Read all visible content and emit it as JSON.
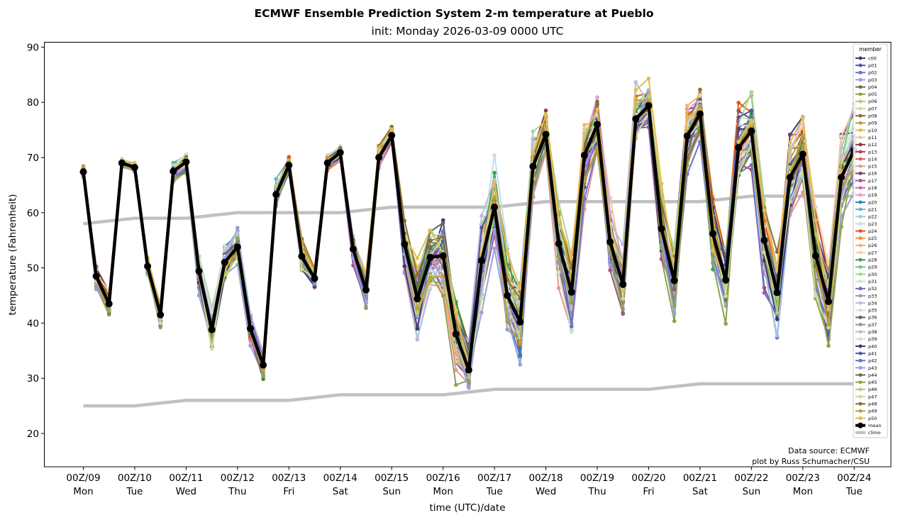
{
  "chart_data": {
    "type": "line",
    "title": "ECMWF Ensemble Prediction System 2-m temperature at Pueblo",
    "subtitle": "init: Monday 2026-03-09 0000 UTC",
    "xlabel": "time (UTC)/date",
    "ylabel": "temperature (Fahrenheit)",
    "ylim": [
      14,
      91
    ],
    "yticks": [
      20,
      30,
      40,
      50,
      60,
      70,
      80,
      90
    ],
    "xlim_days": [
      -0.75,
      15.9
    ],
    "xticks": [
      {
        "day": 0,
        "top": "00Z/09",
        "bottom": "Mon"
      },
      {
        "day": 1,
        "top": "00Z/10",
        "bottom": "Tue"
      },
      {
        "day": 2,
        "top": "00Z/11",
        "bottom": "Wed"
      },
      {
        "day": 3,
        "top": "00Z/12",
        "bottom": "Thu"
      },
      {
        "day": 4,
        "top": "00Z/13",
        "bottom": "Fri"
      },
      {
        "day": 5,
        "top": "00Z/14",
        "bottom": "Sat"
      },
      {
        "day": 6,
        "top": "00Z/15",
        "bottom": "Sun"
      },
      {
        "day": 7,
        "top": "00Z/16",
        "bottom": "Mon"
      },
      {
        "day": 8,
        "top": "00Z/17",
        "bottom": "Tue"
      },
      {
        "day": 9,
        "top": "00Z/18",
        "bottom": "Wed"
      },
      {
        "day": 10,
        "top": "00Z/19",
        "bottom": "Thu"
      },
      {
        "day": 11,
        "top": "00Z/20",
        "bottom": "Fri"
      },
      {
        "day": 12,
        "top": "00Z/21",
        "bottom": "Sat"
      },
      {
        "day": 13,
        "top": "00Z/22",
        "bottom": "Sun"
      },
      {
        "day": 14,
        "top": "00Z/23",
        "bottom": "Mon"
      },
      {
        "day": 15,
        "top": "00Z/24",
        "bottom": "Tue"
      }
    ],
    "time_step_hours": 6,
    "mean": {
      "name": "mean",
      "color": "#000000",
      "values": [
        67.4,
        48.5,
        43.5,
        69.0,
        68.2,
        50.3,
        41.5,
        67.5,
        69.2,
        49.4,
        38.8,
        51.0,
        53.8,
        39.0,
        32.4,
        63.3,
        68.6,
        52.1,
        48.1,
        69.0,
        70.9,
        53.4,
        46.0,
        70.0,
        74.0,
        54.3,
        44.4,
        51.9,
        52.2,
        38.0,
        31.5,
        51.3,
        61.0,
        45.0,
        40.2,
        68.4,
        74.2,
        54.4,
        45.6,
        70.4,
        76.0,
        54.7,
        47.0,
        77.0,
        79.4,
        57.1,
        47.7,
        73.9,
        77.9,
        56.2,
        47.8,
        71.8,
        74.8,
        55.0,
        45.5,
        66.4,
        70.6,
        52.2,
        43.9,
        66.4,
        71.3
      ]
    },
    "spread": [
      1.5,
      3,
      3,
      1,
      1,
      2,
      3,
      2,
      2,
      4,
      5,
      5,
      5,
      4,
      3,
      3,
      2,
      4,
      3,
      2,
      2,
      3,
      4,
      3,
      2,
      6,
      9,
      9,
      10,
      9,
      8,
      11,
      9,
      10,
      10,
      8,
      6,
      10,
      10,
      9,
      7,
      9,
      9,
      7,
      6,
      9,
      8,
      8,
      7,
      9,
      9,
      9,
      8,
      10,
      10,
      11,
      9,
      11,
      11,
      11,
      10
    ],
    "climo": {
      "name": "climo",
      "color": "#c0c0c0",
      "high": [
        58,
        59,
        59,
        60,
        60,
        60,
        61,
        61,
        61,
        62,
        62,
        62,
        62,
        63,
        63,
        63
      ],
      "low": [
        25,
        25,
        26,
        26,
        26,
        27,
        27,
        27,
        28,
        28,
        28,
        28,
        29,
        29,
        29,
        29
      ]
    },
    "members": [
      {
        "name": "c00",
        "color": "#393b79"
      },
      {
        "name": "p01",
        "color": "#5254a3"
      },
      {
        "name": "p02",
        "color": "#6b6ecf"
      },
      {
        "name": "p03",
        "color": "#9c9ede"
      },
      {
        "name": "p04",
        "color": "#637939"
      },
      {
        "name": "p05",
        "color": "#8ca252"
      },
      {
        "name": "p06",
        "color": "#b5cf6b"
      },
      {
        "name": "p07",
        "color": "#cedb9c"
      },
      {
        "name": "p08",
        "color": "#8c6d31"
      },
      {
        "name": "p09",
        "color": "#bd9e39"
      },
      {
        "name": "p10",
        "color": "#e7ba52"
      },
      {
        "name": "p11",
        "color": "#e7cb94"
      },
      {
        "name": "p12",
        "color": "#843c39"
      },
      {
        "name": "p13",
        "color": "#ad494a"
      },
      {
        "name": "p14",
        "color": "#d6616b"
      },
      {
        "name": "p15",
        "color": "#e7969c"
      },
      {
        "name": "p16",
        "color": "#7b4173"
      },
      {
        "name": "p17",
        "color": "#a55194"
      },
      {
        "name": "p18",
        "color": "#ce6dbd"
      },
      {
        "name": "p19",
        "color": "#de9ed6"
      },
      {
        "name": "p20",
        "color": "#3182bd"
      },
      {
        "name": "p21",
        "color": "#6baed6"
      },
      {
        "name": "p22",
        "color": "#9ecae1"
      },
      {
        "name": "p23",
        "color": "#c6dbef"
      },
      {
        "name": "p24",
        "color": "#e6550d"
      },
      {
        "name": "p25",
        "color": "#fd8d3c"
      },
      {
        "name": "p26",
        "color": "#fdae6b"
      },
      {
        "name": "p27",
        "color": "#fdd0a2"
      },
      {
        "name": "p28",
        "color": "#31a354"
      },
      {
        "name": "p29",
        "color": "#74c476"
      },
      {
        "name": "p30",
        "color": "#a1d99b"
      },
      {
        "name": "p31",
        "color": "#c7e9c0"
      },
      {
        "name": "p32",
        "color": "#756bb1"
      },
      {
        "name": "p33",
        "color": "#9e9ac8"
      },
      {
        "name": "p34",
        "color": "#bcbddc"
      },
      {
        "name": "p35",
        "color": "#dadaeb"
      },
      {
        "name": "p36",
        "color": "#636363"
      },
      {
        "name": "p37",
        "color": "#969696"
      },
      {
        "name": "p38",
        "color": "#bdbdbd"
      },
      {
        "name": "p39",
        "color": "#d9d9d9"
      },
      {
        "name": "p40",
        "color": "#393b79"
      },
      {
        "name": "p41",
        "color": "#5254a3"
      },
      {
        "name": "p42",
        "color": "#6b6ecf"
      },
      {
        "name": "p43",
        "color": "#9c9ede"
      },
      {
        "name": "p44",
        "color": "#637939"
      },
      {
        "name": "p45",
        "color": "#8ca252"
      },
      {
        "name": "p46",
        "color": "#b5cf6b"
      },
      {
        "name": "p47",
        "color": "#cedb9c"
      },
      {
        "name": "p48",
        "color": "#8c6d31"
      },
      {
        "name": "p49",
        "color": "#bd9e39"
      },
      {
        "name": "p50",
        "color": "#e7ba52"
      }
    ],
    "legend": {
      "title": "member",
      "placement": "top-right",
      "extra": [
        "mean",
        "climo"
      ]
    },
    "grid": false,
    "annotations": [
      "Data source: ECMWF",
      "plot by Russ Schumacher/CSU"
    ]
  }
}
